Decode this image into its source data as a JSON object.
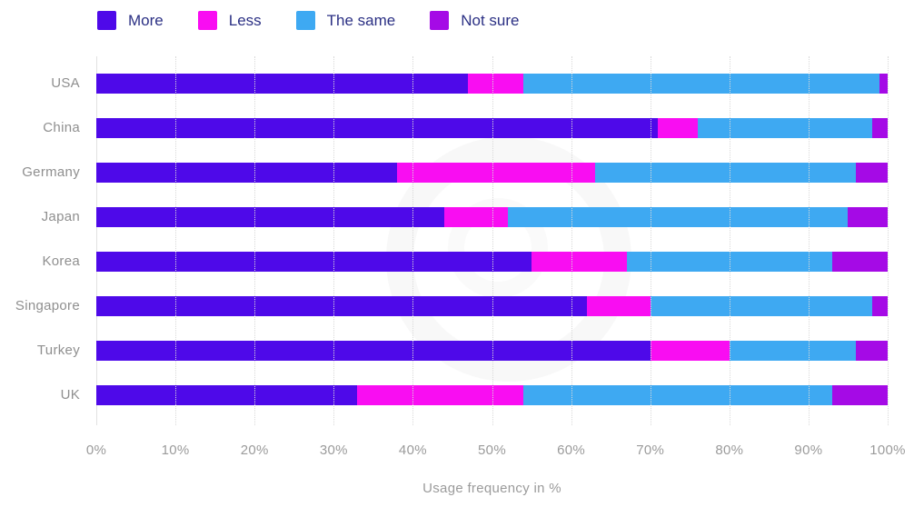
{
  "legend": {
    "items": [
      {
        "label": "More",
        "color": "#4E09E9"
      },
      {
        "label": "Less",
        "color": "#F90DF2"
      },
      {
        "label": "The same",
        "color": "#3EA9F2"
      },
      {
        "label": "Not sure",
        "color": "#A50AE6"
      }
    ],
    "text_color": "#2B3084"
  },
  "chart_data": {
    "type": "bar",
    "orientation": "horizontal",
    "stacked": true,
    "categories": [
      "USA",
      "China",
      "Germany",
      "Japan",
      "Korea",
      "Singapore",
      "Turkey",
      "UK"
    ],
    "series": [
      {
        "name": "More",
        "color": "#4E09E9",
        "values": [
          47,
          71,
          38,
          44,
          55,
          62,
          70,
          33
        ]
      },
      {
        "name": "Less",
        "color": "#F90DF2",
        "values": [
          7,
          5,
          25,
          8,
          12,
          8,
          10,
          21
        ]
      },
      {
        "name": "The same",
        "color": "#3EA9F2",
        "values": [
          45,
          22,
          33,
          43,
          26,
          28,
          16,
          39
        ]
      },
      {
        "name": "Not sure",
        "color": "#A50AE6",
        "values": [
          1,
          2,
          4,
          5,
          7,
          2,
          4,
          7
        ]
      }
    ],
    "title": "",
    "xlabel": "Usage frequency in %",
    "ylabel": "",
    "xlim": [
      0,
      100
    ],
    "x_ticks": [
      "0%",
      "10%",
      "20%",
      "30%",
      "40%",
      "50%",
      "60%",
      "70%",
      "80%",
      "90%",
      "100%"
    ],
    "grid": "vertical-dotted",
    "legend_position": "top-left",
    "label_color": "#8F8F8F",
    "tick_color": "#9B9B9B",
    "gridline_color": "#D9D9D9"
  }
}
